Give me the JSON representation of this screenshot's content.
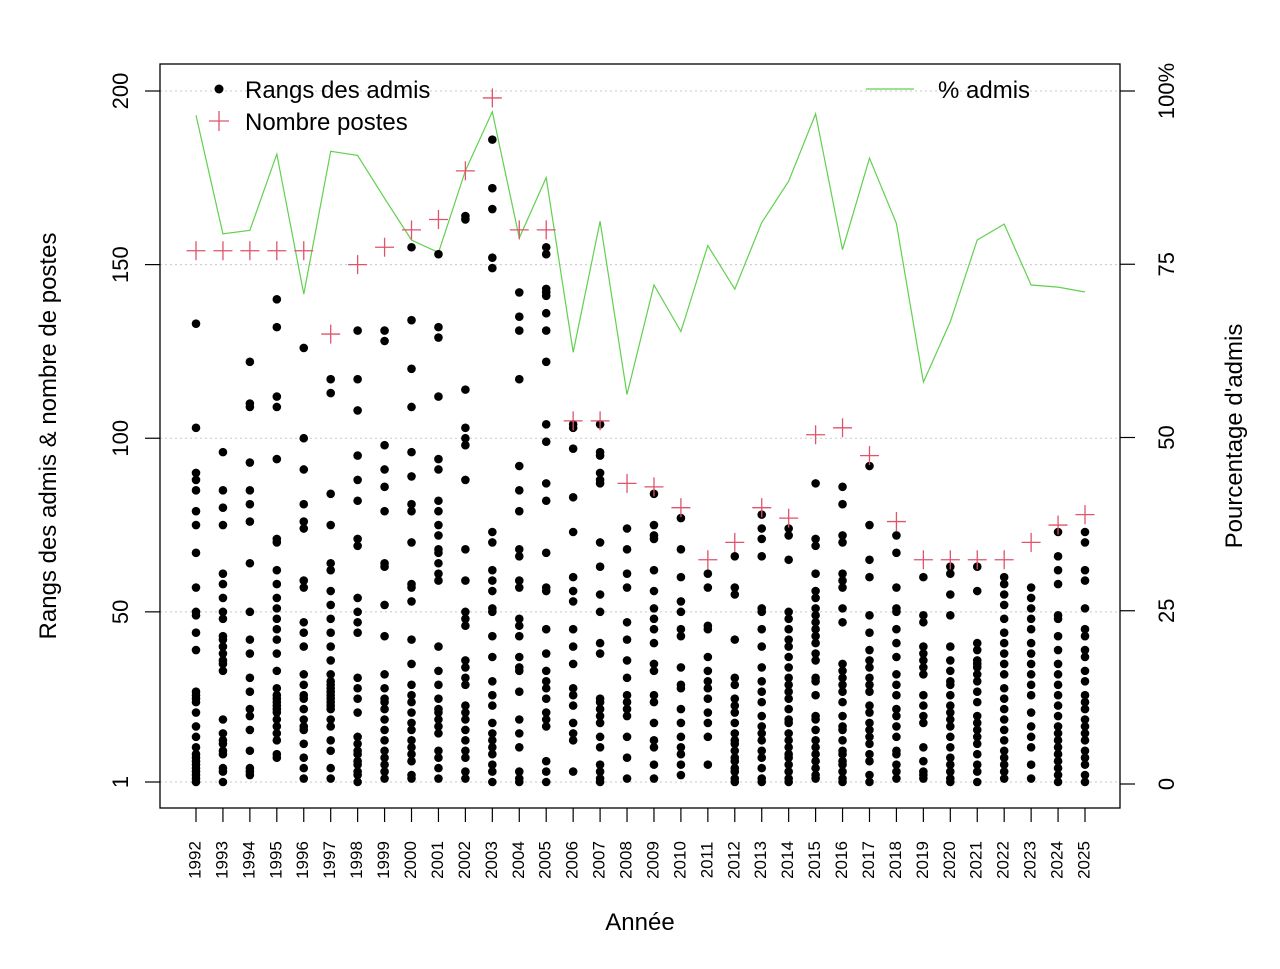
{
  "chart_data": {
    "type": "scatter",
    "xlabel": "Année",
    "ylabel_left": "Rangs des admis & nombre de postes",
    "ylabel_right": "Pourcentage d'admis",
    "years": [
      "1992",
      "1993",
      "1994",
      "1995",
      "1996",
      "1997",
      "1998",
      "1999",
      "2000",
      "2001",
      "2002",
      "2003",
      "2004",
      "2005",
      "2006",
      "2007",
      "2008",
      "2009",
      "2010",
      "2011",
      "2012",
      "2013",
      "2014",
      "2015",
      "2016",
      "2017",
      "2018",
      "2019",
      "2020",
      "2021",
      "2022",
      "2023",
      "2024",
      "2025"
    ],
    "left_axis": {
      "ticks": [
        1,
        50,
        100,
        150,
        200
      ],
      "tick_labels": [
        "1",
        "50",
        "100",
        "150",
        "200"
      ]
    },
    "right_axis": {
      "ticks": [
        0,
        25,
        50,
        75,
        100
      ],
      "tick_labels": [
        "0",
        "25",
        "50",
        "75",
        "100%"
      ]
    },
    "gridlines": "horizontal, dotted, at left-axis ticks",
    "legend": {
      "placement": "top",
      "rangs_label": "Rangs des admis",
      "postes_label": "Nombre postes",
      "pct_label": "% admis"
    },
    "series": {
      "nombre_postes": {
        "marker": "plus",
        "color": "#DF536B",
        "values": [
          154,
          154,
          154,
          154,
          154,
          130,
          150,
          155,
          160,
          163,
          177,
          198,
          160,
          160,
          105,
          105,
          87,
          86,
          80,
          65,
          70,
          80,
          77,
          101,
          103,
          95,
          76,
          65,
          65,
          65,
          65,
          70,
          75,
          78
        ]
      },
      "pct_admis": {
        "marker": "line",
        "color": "#61D04F",
        "values": [
          96.5,
          79.4,
          79.9,
          90.9,
          70.7,
          91.3,
          90.7,
          84.5,
          78.5,
          76.7,
          88.5,
          97,
          78.8,
          87.5,
          62.3,
          81.2,
          56.2,
          72.0,
          65.3,
          77.7,
          71.4,
          81.0,
          87.0,
          96.7,
          77.1,
          90.3,
          80.9,
          58.0,
          66.7,
          78.5,
          80.8,
          72.0,
          71.7,
          71.0
        ]
      },
      "rangs_admis": {
        "marker": "filled-circle",
        "color": "#000000",
        "values": [
          [
            1,
            2,
            3,
            4,
            5,
            6,
            7,
            8,
            9,
            11,
            14,
            17,
            21,
            24,
            25,
            26,
            27,
            39,
            44,
            49,
            50,
            57,
            67,
            75,
            79,
            85,
            88,
            90,
            103,
            133
          ],
          [
            1,
            4,
            5,
            9,
            10,
            12,
            13,
            15,
            19,
            33,
            35,
            36,
            38,
            40,
            42,
            43,
            48,
            50,
            54,
            58,
            61,
            75,
            80,
            85,
            96
          ],
          [
            3,
            4,
            5,
            10,
            16,
            20,
            22,
            27,
            31,
            38,
            42,
            50,
            64,
            76,
            81,
            85,
            93,
            109,
            110,
            122
          ],
          [
            8,
            9,
            13,
            15,
            17,
            19,
            21,
            22,
            23,
            24,
            25,
            26,
            28,
            33,
            38,
            42,
            45,
            48,
            51,
            54,
            58,
            62,
            70,
            71,
            94,
            109,
            112,
            132,
            140
          ],
          [
            2,
            5,
            8,
            12,
            16,
            17,
            19,
            22,
            25,
            26,
            29,
            32,
            40,
            44,
            47,
            57,
            59,
            74,
            76,
            81,
            91,
            100,
            126
          ],
          [
            2,
            5,
            10,
            13,
            17,
            19,
            22,
            23,
            24,
            25,
            26,
            27,
            28,
            29,
            30,
            32,
            36,
            40,
            44,
            48,
            52,
            56,
            62,
            64,
            75,
            84,
            113,
            117
          ],
          [
            1,
            3,
            4,
            6,
            7,
            9,
            10,
            12,
            14,
            21,
            25,
            28,
            31,
            44,
            47,
            50,
            54,
            69,
            71,
            82,
            88,
            95,
            108,
            117,
            131
          ],
          [
            2,
            4,
            6,
            8,
            10,
            13,
            16,
            19,
            22,
            24,
            25,
            28,
            32,
            43,
            52,
            63,
            64,
            79,
            86,
            91,
            98,
            128,
            131
          ],
          [
            2,
            3,
            7,
            9,
            11,
            13,
            16,
            18,
            21,
            24,
            26,
            29,
            35,
            42,
            53,
            57,
            58,
            70,
            79,
            81,
            89,
            96,
            109,
            120,
            134,
            155
          ],
          [
            2,
            5,
            8,
            10,
            15,
            17,
            19,
            21,
            22,
            25,
            29,
            33,
            40,
            59,
            61,
            64,
            67,
            68,
            72,
            75,
            79,
            82,
            91,
            94,
            112,
            129,
            132,
            153
          ],
          [
            2,
            4,
            8,
            10,
            13,
            16,
            19,
            21,
            23,
            29,
            31,
            34,
            36,
            46,
            48,
            50,
            59,
            68,
            88,
            98,
            100,
            103,
            114,
            163,
            164
          ],
          [
            1,
            4,
            6,
            9,
            11,
            13,
            15,
            18,
            23,
            26,
            30,
            37,
            43,
            50,
            51,
            56,
            59,
            62,
            70,
            73,
            149,
            152,
            166,
            172,
            186
          ],
          [
            1,
            2,
            4,
            11,
            15,
            19,
            27,
            33,
            34,
            37,
            43,
            46,
            48,
            57,
            59,
            66,
            68,
            79,
            85,
            92,
            117,
            131,
            135,
            142
          ],
          [
            1,
            4,
            7,
            17,
            19,
            21,
            25,
            28,
            30,
            33,
            38,
            45,
            56,
            57,
            67,
            82,
            87,
            99,
            104,
            122,
            131,
            136,
            141,
            142,
            143,
            153,
            155
          ],
          [
            4,
            13,
            15,
            18,
            23,
            26,
            28,
            35,
            40,
            45,
            53,
            56,
            60,
            73,
            83,
            97,
            103,
            104
          ],
          [
            1,
            2,
            4,
            6,
            11,
            14,
            18,
            20,
            22,
            24,
            25,
            38,
            41,
            50,
            55,
            63,
            70,
            87,
            88,
            90,
            95,
            96,
            104
          ],
          [
            2,
            8,
            14,
            20,
            22,
            24,
            26,
            31,
            36,
            42,
            47,
            57,
            61,
            68,
            74
          ],
          [
            2,
            6,
            11,
            13,
            18,
            24,
            26,
            33,
            35,
            41,
            45,
            48,
            51,
            56,
            62,
            71,
            72,
            75,
            84
          ],
          [
            3,
            6,
            9,
            11,
            14,
            18,
            22,
            28,
            29,
            34,
            43,
            45,
            50,
            53,
            60,
            68,
            77
          ],
          [
            6,
            14,
            18,
            21,
            25,
            28,
            30,
            33,
            37,
            45,
            46,
            57,
            61
          ],
          [
            1,
            2,
            4,
            5,
            7,
            8,
            10,
            12,
            13,
            15,
            18,
            21,
            23,
            25,
            29,
            31,
            42,
            55,
            57,
            66
          ],
          [
            1,
            2,
            5,
            8,
            10,
            13,
            15,
            17,
            20,
            24,
            27,
            30,
            34,
            40,
            45,
            50,
            51,
            66,
            71,
            74,
            78
          ],
          [
            1,
            2,
            4,
            6,
            8,
            9,
            11,
            13,
            15,
            18,
            19,
            22,
            25,
            27,
            29,
            31,
            34,
            37,
            40,
            42,
            45,
            48,
            50,
            65,
            72,
            74
          ],
          [
            2,
            3,
            5,
            7,
            9,
            11,
            13,
            16,
            19,
            20,
            26,
            30,
            31,
            36,
            38,
            41,
            43,
            45,
            47,
            49,
            51,
            54,
            56,
            61,
            69,
            71,
            87
          ],
          [
            1,
            2,
            4,
            6,
            7,
            9,
            10,
            13,
            16,
            17,
            20,
            24,
            27,
            29,
            31,
            33,
            35,
            47,
            51,
            57,
            59,
            61,
            70,
            72,
            81,
            86
          ],
          [
            1,
            3,
            7,
            9,
            12,
            14,
            16,
            18,
            21,
            23,
            27,
            29,
            31,
            34,
            36,
            39,
            44,
            49,
            60,
            65,
            75,
            92
          ],
          [
            2,
            4,
            6,
            9,
            10,
            14,
            17,
            20,
            22,
            26,
            29,
            32,
            37,
            41,
            45,
            50,
            51,
            57,
            67,
            72
          ],
          [
            2,
            3,
            4,
            7,
            11,
            18,
            20,
            23,
            26,
            32,
            34,
            36,
            38,
            40,
            47,
            49,
            60
          ],
          [
            1,
            2,
            4,
            6,
            8,
            11,
            14,
            17,
            19,
            21,
            23,
            26,
            29,
            30,
            33,
            36,
            40,
            49,
            55,
            61,
            63
          ],
          [
            1,
            4,
            6,
            9,
            12,
            14,
            16,
            18,
            20,
            24,
            27,
            30,
            32,
            34,
            35,
            36,
            39,
            41,
            56,
            63
          ],
          [
            2,
            4,
            6,
            8,
            10,
            13,
            16,
            19,
            22,
            25,
            28,
            32,
            35,
            38,
            41,
            44,
            48,
            52,
            55,
            58,
            60
          ],
          [
            2,
            6,
            11,
            14,
            17,
            21,
            26,
            29,
            32,
            35,
            38,
            41,
            45,
            48,
            51,
            54,
            57
          ],
          [
            1,
            3,
            5,
            7,
            9,
            11,
            13,
            15,
            17,
            20,
            23,
            26,
            29,
            32,
            35,
            39,
            43,
            48,
            49,
            58,
            62,
            66,
            73
          ],
          [
            1,
            3,
            6,
            8,
            10,
            13,
            15,
            17,
            19,
            22,
            24,
            26,
            30,
            33,
            37,
            39,
            43,
            45,
            51,
            59,
            62,
            70,
            73
          ]
        ]
      }
    }
  }
}
